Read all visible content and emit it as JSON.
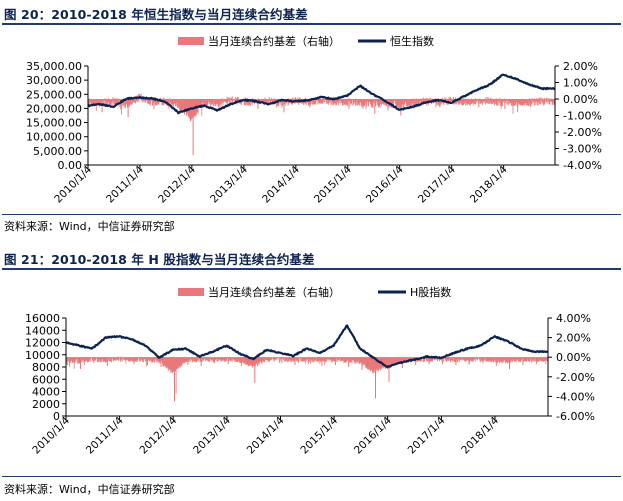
{
  "figures": [
    {
      "title": "图 20：2010-2018 年恒生指数与当月连续合约基差",
      "source": "资料来源：Wind，中信证券研究部"
    },
    {
      "title": "图 21：2010-2018 年 H 股指数与当月连续合约基差",
      "source": "资料来源：Wind，中信证券研究部"
    }
  ],
  "chart_data": [
    {
      "type": "line",
      "title": "图 20：2010-2018 年恒生指数与当月连续合约基差",
      "xlabel": "",
      "ylabel": "",
      "x_ticks": [
        "2010/1/4",
        "2011/1/4",
        "2012/1/4",
        "2013/1/4",
        "2014/1/4",
        "2015/1/4",
        "2016/1/4",
        "2017/1/4",
        "2018/1/4"
      ],
      "x_range": [
        "2010/1/4",
        "2018/12/31"
      ],
      "left_axis": {
        "ylim": [
          0,
          35000
        ],
        "ticks": [
          "35,000.00",
          "30,000.00",
          "25,000.00",
          "20,000.00",
          "15,000.00",
          "10,000.00",
          "5,000.00",
          "0.00"
        ]
      },
      "right_axis": {
        "ylim": [
          -4,
          2
        ],
        "ticks": [
          "2.00%",
          "1.00%",
          "0.00%",
          "-1.00%",
          "-2.00%",
          "-3.00%",
          "-4.00%"
        ]
      },
      "legend": "top",
      "grid": false,
      "series": [
        {
          "name": "当月连续合约基差（右轴）",
          "chart": "bar",
          "axis": "right",
          "color": "#e8787a",
          "x": [
            "2010/1",
            "2010/4",
            "2010/7",
            "2010/10",
            "2011/1",
            "2011/4",
            "2011/7",
            "2011/10",
            "2012/1",
            "2012/4",
            "2012/7",
            "2012/10",
            "2013/1",
            "2013/4",
            "2013/7",
            "2013/10",
            "2014/1",
            "2014/4",
            "2014/7",
            "2014/10",
            "2015/1",
            "2015/4",
            "2015/7",
            "2015/10",
            "2016/1",
            "2016/4",
            "2016/7",
            "2016/10",
            "2017/1",
            "2017/4",
            "2017/7",
            "2017/10",
            "2018/1",
            "2018/4",
            "2018/7",
            "2018/10"
          ],
          "values": [
            -0.5,
            -0.8,
            -0.3,
            -1.1,
            0.3,
            -0.6,
            -0.4,
            -0.9,
            -3.4,
            -0.5,
            -0.7,
            -0.2,
            -0.4,
            -0.6,
            -0.3,
            -0.8,
            -0.2,
            -0.5,
            -0.3,
            -0.4,
            -0.6,
            -0.5,
            -0.9,
            -0.7,
            -1.0,
            -0.6,
            -0.4,
            -0.5,
            -0.3,
            -0.4,
            -0.5,
            -0.3,
            -0.6,
            -0.8,
            -0.5,
            -0.4
          ]
        },
        {
          "name": "恒生指数",
          "chart": "line",
          "axis": "left",
          "color": "#0d2250",
          "x": [
            "2010/1",
            "2010/4",
            "2010/7",
            "2010/10",
            "2011/1",
            "2011/4",
            "2011/7",
            "2011/10",
            "2012/1",
            "2012/4",
            "2012/7",
            "2012/10",
            "2013/1",
            "2013/4",
            "2013/7",
            "2013/10",
            "2014/1",
            "2014/4",
            "2014/7",
            "2014/10",
            "2015/1",
            "2015/4",
            "2015/7",
            "2015/10",
            "2016/1",
            "2016/4",
            "2016/7",
            "2016/10",
            "2017/1",
            "2017/4",
            "2017/7",
            "2017/10",
            "2018/1",
            "2018/4",
            "2018/7",
            "2018/10"
          ],
          "values": [
            21000,
            21500,
            20500,
            23500,
            23800,
            23500,
            22400,
            18500,
            20000,
            21000,
            19300,
            21500,
            23000,
            22500,
            21500,
            23000,
            22500,
            22800,
            24000,
            23300,
            24500,
            28000,
            25000,
            22500,
            19500,
            20500,
            22000,
            23000,
            22000,
            24300,
            26500,
            28500,
            32000,
            30500,
            28500,
            27000
          ]
        }
      ]
    },
    {
      "type": "line",
      "title": "图 21：2010-2018 年 H 股指数与当月连续合约基差",
      "xlabel": "",
      "ylabel": "",
      "x_ticks": [
        "2010/1/4",
        "2011/1/4",
        "2012/1/4",
        "2013/1/4",
        "2014/1/4",
        "2015/1/4",
        "2016/1/4",
        "2017/1/4",
        "2018/1/4"
      ],
      "x_range": [
        "2010/1/4",
        "2018/12/31"
      ],
      "left_axis": {
        "ylim": [
          0,
          16000
        ],
        "ticks": [
          "16000",
          "14000",
          "12000",
          "10000",
          "8000",
          "6000",
          "4000",
          "2000",
          "0"
        ]
      },
      "right_axis": {
        "ylim": [
          -6,
          4
        ],
        "ticks": [
          "4.00%",
          "2.00%",
          "0.00%",
          "-2.00%",
          "-4.00%",
          "-6.00%"
        ]
      },
      "legend": "top",
      "grid": false,
      "series": [
        {
          "name": "当月连续合约基差（右轴）",
          "chart": "bar",
          "axis": "right",
          "color": "#e8787a",
          "x": [
            "2010/1",
            "2010/4",
            "2010/7",
            "2010/10",
            "2011/1",
            "2011/4",
            "2011/7",
            "2011/10",
            "2012/1",
            "2012/4",
            "2012/7",
            "2012/10",
            "2013/1",
            "2013/4",
            "2013/7",
            "2013/10",
            "2014/1",
            "2014/4",
            "2014/7",
            "2014/10",
            "2015/1",
            "2015/4",
            "2015/7",
            "2015/10",
            "2016/1",
            "2016/4",
            "2016/7",
            "2016/10",
            "2017/1",
            "2017/4",
            "2017/7",
            "2017/10",
            "2018/1",
            "2018/4",
            "2018/7",
            "2018/10"
          ],
          "values": [
            -0.8,
            -1.2,
            -0.6,
            -0.9,
            -0.5,
            -0.7,
            -0.8,
            -1.0,
            -4.5,
            -0.8,
            -0.9,
            -0.6,
            -0.7,
            -0.9,
            -2.6,
            -0.5,
            -0.6,
            -0.8,
            -0.7,
            -0.9,
            -0.8,
            -1.0,
            -1.3,
            -4.2,
            -2.5,
            -1.1,
            -0.8,
            -0.7,
            -0.6,
            -0.8,
            -0.7,
            -0.6,
            -0.9,
            -1.2,
            -0.8,
            -0.7
          ]
        },
        {
          "name": "H股指数",
          "chart": "line",
          "axis": "left",
          "color": "#0d2250",
          "x": [
            "2010/1",
            "2010/4",
            "2010/7",
            "2010/10",
            "2011/1",
            "2011/4",
            "2011/7",
            "2011/10",
            "2012/1",
            "2012/4",
            "2012/7",
            "2012/10",
            "2013/1",
            "2013/4",
            "2013/7",
            "2013/10",
            "2014/1",
            "2014/4",
            "2014/7",
            "2014/10",
            "2015/1",
            "2015/4",
            "2015/7",
            "2015/10",
            "2016/1",
            "2016/4",
            "2016/7",
            "2016/10",
            "2017/1",
            "2017/4",
            "2017/7",
            "2017/10",
            "2018/1",
            "2018/4",
            "2018/7",
            "2018/10"
          ],
          "values": [
            12000,
            11500,
            11000,
            12800,
            13000,
            12500,
            11500,
            9500,
            10800,
            11000,
            9700,
            10500,
            11500,
            10200,
            9300,
            10800,
            10300,
            9800,
            11000,
            10300,
            11500,
            14800,
            11000,
            9500,
            8000,
            8700,
            9200,
            9700,
            9500,
            10300,
            11000,
            11500,
            13000,
            12200,
            11000,
            10500
          ]
        }
      ]
    }
  ]
}
